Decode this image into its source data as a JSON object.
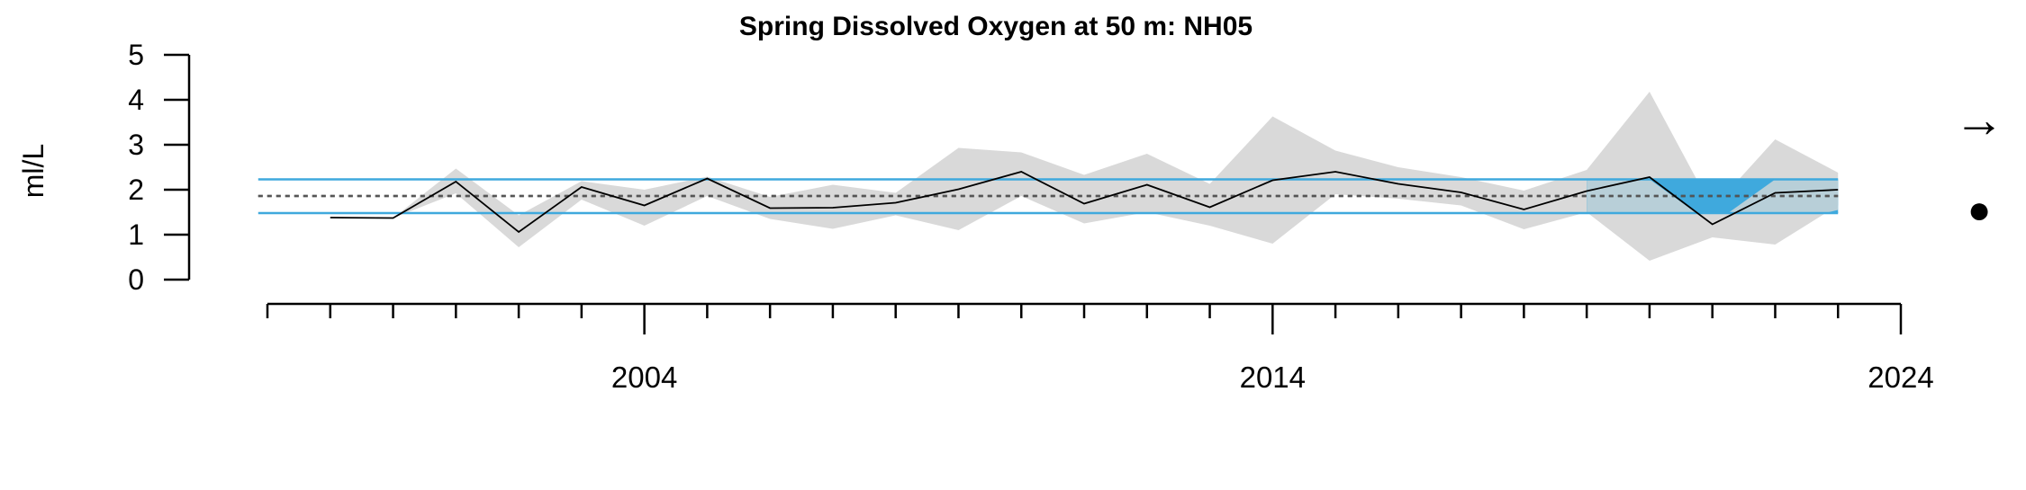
{
  "chart_data": {
    "type": "line",
    "title": "Spring Dissolved Oxygen at 50 m: NH05",
    "ylabel": "ml/L",
    "xlabel": "",
    "ylim": [
      0,
      5
    ],
    "xlim": [
      1998,
      2024
    ],
    "yticks": [
      0,
      1,
      2,
      3,
      4,
      5
    ],
    "xticks_major": [
      2004,
      2014,
      2024
    ],
    "xtick_labels": [
      "2004",
      "2014",
      "2024"
    ],
    "xticks_minor": [
      1998,
      1999,
      2000,
      2001,
      2002,
      2003,
      2004,
      2005,
      2006,
      2007,
      2008,
      2009,
      2010,
      2011,
      2012,
      2013,
      2014,
      2015,
      2016,
      2017,
      2018,
      2019,
      2020,
      2021,
      2022,
      2023,
      2024
    ],
    "mean": 1.86,
    "sd_lower": 1.48,
    "sd_upper": 2.23,
    "recent_period": [
      2019,
      2023
    ],
    "colors": {
      "line": "#000000",
      "band": "#d9d9d9",
      "sd_lines": "#3fa9dd",
      "recent_fill": "#3fa9dd",
      "mean_line": "#000000"
    },
    "series": [
      {
        "x": [
          1999,
          2000,
          2001,
          2002,
          2003,
          2004,
          2005,
          2006,
          2007,
          2008,
          2009,
          2010,
          2011,
          2012,
          2013,
          2014,
          2015,
          2016,
          2017,
          2018,
          2019,
          2020,
          2021,
          2022,
          2023
        ],
        "values": [
          1.38,
          1.37,
          2.18,
          1.06,
          2.06,
          1.65,
          2.25,
          1.59,
          1.6,
          1.71,
          2.01,
          2.4,
          1.69,
          2.11,
          1.61,
          2.21,
          2.4,
          2.13,
          1.94,
          1.56,
          1.97,
          2.28,
          1.23,
          1.93,
          2.0
        ],
        "lower": [
          1.38,
          1.37,
          1.92,
          0.72,
          1.78,
          1.2,
          1.86,
          1.35,
          1.13,
          1.43,
          1.1,
          1.86,
          1.25,
          1.5,
          1.2,
          0.8,
          1.9,
          1.8,
          1.65,
          1.12,
          1.5,
          0.42,
          0.94,
          0.78,
          1.65
        ],
        "upper": [
          1.38,
          1.37,
          2.47,
          1.43,
          2.19,
          2.0,
          2.29,
          1.84,
          2.11,
          1.93,
          2.93,
          2.83,
          2.33,
          2.8,
          2.13,
          3.63,
          2.87,
          2.5,
          2.28,
          1.98,
          2.44,
          4.18,
          1.58,
          3.12,
          2.38
        ]
      }
    ],
    "indicators": {
      "trend_symbol": "→",
      "status_symbol": "●"
    }
  }
}
